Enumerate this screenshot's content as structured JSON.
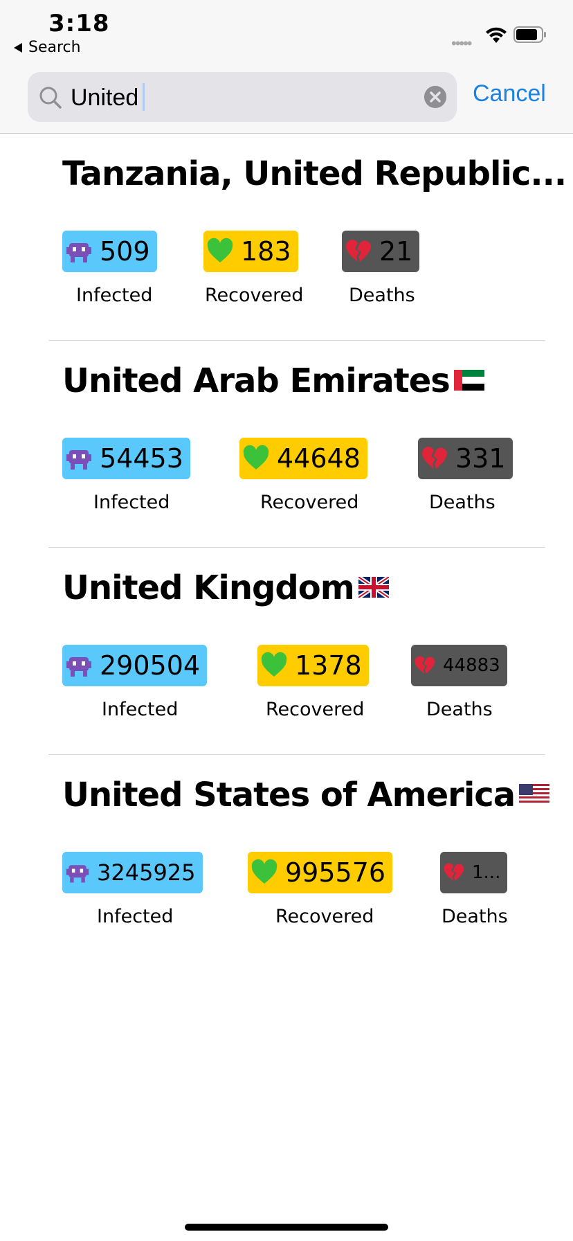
{
  "status": {
    "time": "3:18",
    "back_label": "Search"
  },
  "search": {
    "value": "United",
    "cancel_label": "Cancel"
  },
  "countries": [
    {
      "name": "Tanzania, United Republic...",
      "flag": "",
      "infected": "509",
      "recovered": "183",
      "deaths": "21"
    },
    {
      "name": "United Arab Emirates",
      "flag": "uae-flag-icon",
      "infected": "54453",
      "recovered": "44648",
      "deaths": "331"
    },
    {
      "name": "United Kingdom",
      "flag": "uk-flag-icon",
      "infected": "290504",
      "recovered": "1378",
      "deaths": "44883"
    },
    {
      "name": "United States of America",
      "flag": "us-flag-icon",
      "infected": "3245925",
      "recovered": "995576",
      "deaths": "1..."
    }
  ],
  "labels": {
    "infected": "Infected",
    "recovered": "Recovered",
    "deaths": "Deaths"
  },
  "colors": {
    "infected": "#5ac8fa",
    "recovered": "#ffcc00",
    "deaths": "#555555",
    "accent": "#1a82e2"
  },
  "icons": {
    "infected": "alien-monster-icon",
    "recovered": "green-heart-icon",
    "deaths": "broken-heart-icon"
  }
}
